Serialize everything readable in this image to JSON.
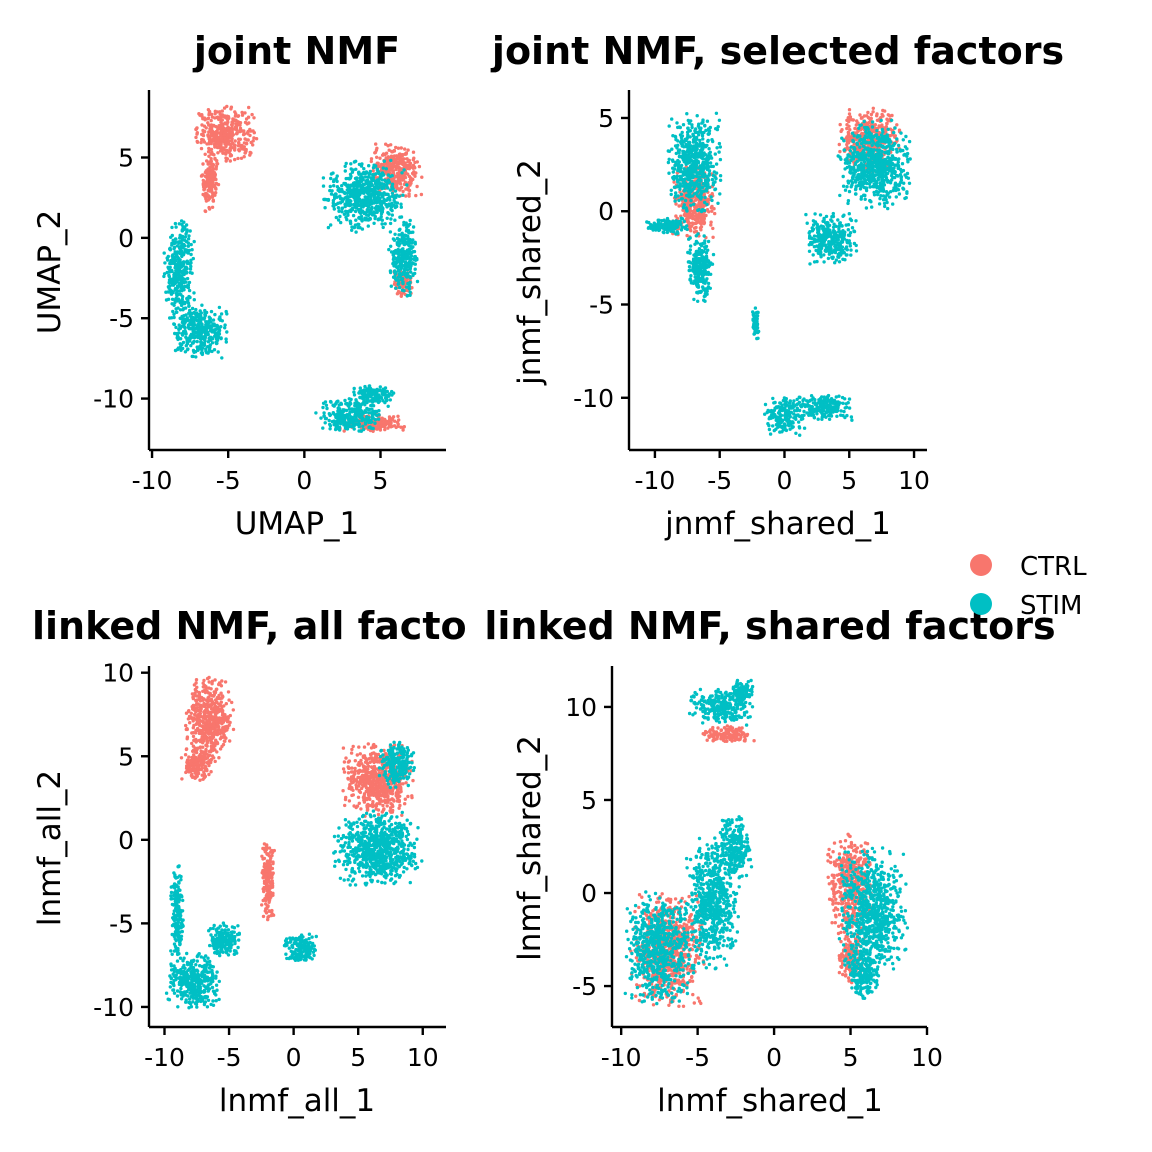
{
  "colors": {
    "CTRL": "#F8766D",
    "STIM": "#00BFC4"
  },
  "legend": {
    "entries": [
      {
        "label": "CTRL",
        "color": "#F8766D"
      },
      {
        "label": "STIM",
        "color": "#00BFC4"
      }
    ],
    "placement": "right-center"
  },
  "chart_data": [
    {
      "type": "scatter",
      "title": "joint NMF",
      "xlabel": "UMAP_1",
      "ylabel": "UMAP_2",
      "xlim": [
        -10.2,
        9.3
      ],
      "ylim": [
        -13.2,
        9.2
      ],
      "xticks": [
        -10,
        -5,
        0,
        5
      ],
      "yticks": [
        -10,
        -5,
        0,
        5
      ],
      "grid": false,
      "clusters": [
        {
          "group": "CTRL",
          "cx": -5.2,
          "cy": 6.5,
          "sx": 1.2,
          "sy": 1.0
        },
        {
          "group": "CTRL",
          "cx": -6.2,
          "cy": 3.5,
          "sx": 0.35,
          "sy": 1.1
        },
        {
          "group": "STIM",
          "cx": -8.2,
          "cy": -2.0,
          "sx": 0.6,
          "sy": 1.8
        },
        {
          "group": "STIM",
          "cx": -6.8,
          "cy": -5.8,
          "sx": 1.1,
          "sy": 1.0
        },
        {
          "group": "STIM",
          "cx": 4.0,
          "cy": 2.6,
          "sx": 1.6,
          "sy": 1.3
        },
        {
          "group": "CTRL",
          "cx": 6.0,
          "cy": 4.2,
          "sx": 1.0,
          "sy": 1.0
        },
        {
          "group": "STIM",
          "cx": 6.5,
          "cy": -1.2,
          "sx": 0.6,
          "sy": 1.4
        },
        {
          "group": "CTRL",
          "cx": 6.5,
          "cy": -2.8,
          "sx": 0.4,
          "sy": 0.5
        },
        {
          "group": "STIM",
          "cx": 3.0,
          "cy": -11.0,
          "sx": 1.3,
          "sy": 0.6
        },
        {
          "group": "STIM",
          "cx": 4.5,
          "cy": -9.8,
          "sx": 0.8,
          "sy": 0.4
        },
        {
          "group": "CTRL",
          "cx": 4.5,
          "cy": -11.5,
          "sx": 1.3,
          "sy": 0.35
        }
      ]
    },
    {
      "type": "scatter",
      "title": "joint NMF, selected factors",
      "xlabel": "jnmf_shared_1",
      "ylabel": "jnmf_shared_2",
      "xlim": [
        -12,
        11
      ],
      "ylim": [
        -12.8,
        6.5
      ],
      "xticks": [
        -10,
        -5,
        0,
        5,
        10
      ],
      "yticks": [
        -10,
        -5,
        0,
        5
      ],
      "grid": false,
      "clusters": [
        {
          "group": "STIM",
          "cx": -7.0,
          "cy": 2.5,
          "sx": 1.2,
          "sy": 1.6
        },
        {
          "group": "STIM",
          "cx": -6.5,
          "cy": -3.0,
          "sx": 0.6,
          "sy": 1.1
        },
        {
          "group": "STIM",
          "cx": -9.0,
          "cy": -0.8,
          "sx": 1.1,
          "sy": 0.25
        },
        {
          "group": "CTRL",
          "cx": -7.0,
          "cy": 0.5,
          "sx": 1.0,
          "sy": 1.2
        },
        {
          "group": "STIM",
          "cx": 7.0,
          "cy": 2.5,
          "sx": 1.6,
          "sy": 1.4
        },
        {
          "group": "CTRL",
          "cx": 6.5,
          "cy": 3.8,
          "sx": 1.4,
          "sy": 1.0
        },
        {
          "group": "STIM",
          "cx": 3.5,
          "cy": -1.5,
          "sx": 1.2,
          "sy": 0.8
        },
        {
          "group": "STIM",
          "cx": -2.2,
          "cy": -6.0,
          "sx": 0.15,
          "sy": 0.5
        },
        {
          "group": "STIM",
          "cx": 0.0,
          "cy": -11.0,
          "sx": 0.9,
          "sy": 0.6
        },
        {
          "group": "STIM",
          "cx": 3.0,
          "cy": -10.5,
          "sx": 1.3,
          "sy": 0.4
        }
      ]
    },
    {
      "type": "scatter",
      "title": "linked NMF, all facto",
      "xlabel": "lnmf_all_1",
      "ylabel": "lnmf_all_2",
      "xlim": [
        -11.2,
        11.8
      ],
      "ylim": [
        -11.2,
        10.4
      ],
      "xticks": [
        -10,
        -5,
        0,
        5,
        10
      ],
      "yticks": [
        -10,
        -5,
        0,
        5,
        10
      ],
      "grid": false,
      "clusters": [
        {
          "group": "CTRL",
          "cx": -6.5,
          "cy": 7.2,
          "sx": 1.1,
          "sy": 1.5
        },
        {
          "group": "CTRL",
          "cx": -7.5,
          "cy": 4.5,
          "sx": 0.7,
          "sy": 0.6
        },
        {
          "group": "STIM",
          "cx": -9.0,
          "cy": -4.5,
          "sx": 0.3,
          "sy": 1.8
        },
        {
          "group": "STIM",
          "cx": -7.8,
          "cy": -8.5,
          "sx": 1.2,
          "sy": 1.0
        },
        {
          "group": "STIM",
          "cx": -5.5,
          "cy": -6.0,
          "sx": 0.8,
          "sy": 0.6
        },
        {
          "group": "CTRL",
          "cx": -2.0,
          "cy": -2.5,
          "sx": 0.3,
          "sy": 1.5
        },
        {
          "group": "STIM",
          "cx": 0.5,
          "cy": -6.5,
          "sx": 0.8,
          "sy": 0.5
        },
        {
          "group": "STIM",
          "cx": 6.5,
          "cy": -0.5,
          "sx": 2.0,
          "sy": 1.3
        },
        {
          "group": "CTRL",
          "cx": 6.5,
          "cy": 3.5,
          "sx": 1.6,
          "sy": 1.3
        },
        {
          "group": "STIM",
          "cx": 8.0,
          "cy": 4.5,
          "sx": 0.8,
          "sy": 0.8
        }
      ]
    },
    {
      "type": "scatter",
      "title": "linked NMF, shared factors",
      "xlabel": "lnmf_shared_1",
      "ylabel": "lnmf_shared_2",
      "xlim": [
        -10.6,
        10
      ],
      "ylim": [
        -7.2,
        12.2
      ],
      "xticks": [
        -10,
        -5,
        0,
        5,
        10
      ],
      "yticks": [
        -5,
        0,
        5,
        10
      ],
      "grid": false,
      "clusters": [
        {
          "group": "STIM",
          "cx": -3.5,
          "cy": 10.0,
          "sx": 1.2,
          "sy": 0.6
        },
        {
          "group": "CTRL",
          "cx": -3.0,
          "cy": 8.5,
          "sx": 1.0,
          "sy": 0.3
        },
        {
          "group": "STIM",
          "cx": -2.0,
          "cy": 10.8,
          "sx": 0.4,
          "sy": 0.4
        },
        {
          "group": "STIM",
          "cx": -7.5,
          "cy": -3.0,
          "sx": 1.3,
          "sy": 1.8
        },
        {
          "group": "STIM",
          "cx": -4.0,
          "cy": -0.5,
          "sx": 1.0,
          "sy": 2.2
        },
        {
          "group": "CTRL",
          "cx": -7.0,
          "cy": -3.0,
          "sx": 1.4,
          "sy": 1.8
        },
        {
          "group": "STIM",
          "cx": -2.5,
          "cy": 2.5,
          "sx": 0.6,
          "sy": 1.0
        },
        {
          "group": "STIM",
          "cx": 6.5,
          "cy": -1.0,
          "sx": 1.3,
          "sy": 2.0
        },
        {
          "group": "CTRL",
          "cx": 5.0,
          "cy": 0.5,
          "sx": 0.9,
          "sy": 1.6
        },
        {
          "group": "STIM",
          "cx": 5.8,
          "cy": -4.5,
          "sx": 0.6,
          "sy": 0.8
        },
        {
          "group": "CTRL",
          "cx": 5.0,
          "cy": -3.5,
          "sx": 0.5,
          "sy": 0.8
        }
      ]
    }
  ]
}
